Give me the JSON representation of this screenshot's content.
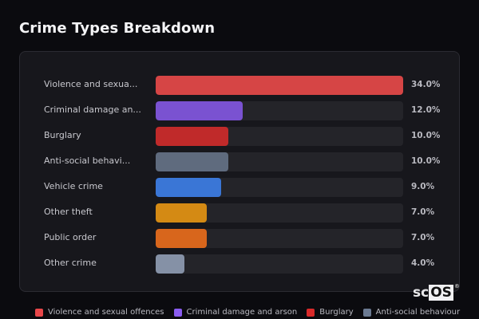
{
  "header": {
    "title": "Crime Types Breakdown"
  },
  "chart_data": {
    "type": "bar",
    "orientation": "horizontal",
    "title": "Crime Types Breakdown",
    "xlabel": "",
    "ylabel": "",
    "xlim": [
      0,
      34
    ],
    "grid": false,
    "legend_position": "bottom",
    "categories": [
      "Violence and sexual offences",
      "Criminal damage and arson",
      "Burglary",
      "Anti-social behaviour",
      "Vehicle crime",
      "Other theft",
      "Public order",
      "Other crime"
    ],
    "display_labels": [
      "Violence and sexua...",
      "Criminal damage an...",
      "Burglary",
      "Anti-social behavi...",
      "Vehicle crime",
      "Other theft",
      "Public order",
      "Other crime"
    ],
    "values": [
      34.0,
      12.0,
      10.0,
      10.0,
      9.0,
      7.0,
      7.0,
      4.0
    ],
    "value_labels": [
      "34.0%",
      "12.0%",
      "10.0%",
      "10.0%",
      "9.0%",
      "7.0%",
      "7.0%",
      "4.0%"
    ],
    "colors": [
      "#d64545",
      "#7a52d1",
      "#c02a2a",
      "#5f6b7e",
      "#3a76d6",
      "#d48a14",
      "#d8661c",
      "#8591a6"
    ],
    "legend": [
      {
        "label": "Violence and sexual offences",
        "color": "#e8474a"
      },
      {
        "label": "Criminal damage and arson",
        "color": "#8a5cf0"
      },
      {
        "label": "Burglary",
        "color": "#d92a2a"
      },
      {
        "label": "Anti-social behaviour",
        "color": "#6b7a92"
      }
    ]
  },
  "branding": {
    "logo_prefix": "sc",
    "logo_box": "OS",
    "logo_mark": "®"
  }
}
